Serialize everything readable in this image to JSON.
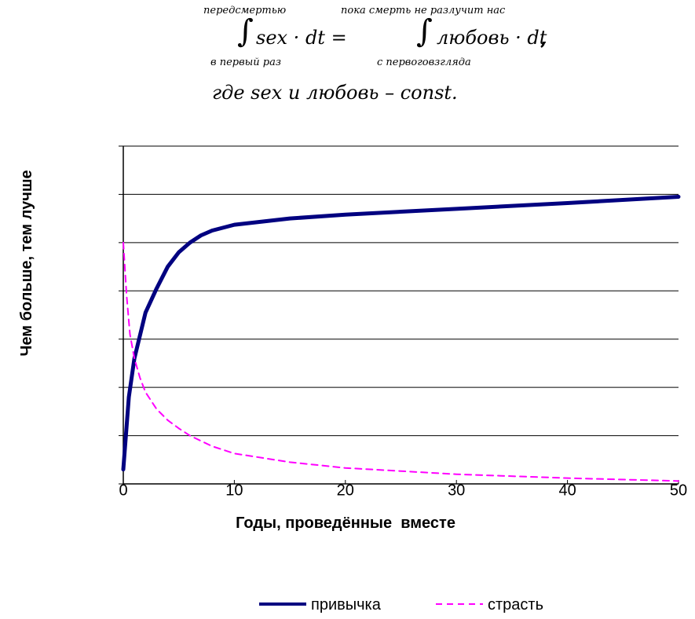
{
  "formula": {
    "int1_upper": "передсмертью",
    "int1_lower": "в первый раз",
    "int1_expr": "sex · dt =",
    "int2_upper": "пока смерть не разлучит нас",
    "int2_lower": "с первоговзгляда",
    "int2_expr": "любовь · dt",
    "comma": ",",
    "where": "где sex и любовь – const."
  },
  "colors": {
    "habit": "#000080",
    "passion": "#ff00ff",
    "grid": "#000000"
  },
  "chart_data": {
    "type": "line",
    "xlabel": "Годы, проведённые  вместе",
    "ylabel": "Чем больше, тем лучше",
    "xlim": [
      0,
      50
    ],
    "ylim": [
      0,
      7
    ],
    "x_ticks": [
      0,
      10,
      20,
      30,
      40,
      50
    ],
    "grid": true,
    "legend_position": "bottom",
    "series": [
      {
        "name": "привычка",
        "style": "solid",
        "x": [
          0,
          0.5,
          1,
          2,
          3,
          4,
          5,
          6,
          7,
          8,
          10,
          15,
          20,
          30,
          40,
          50
        ],
        "y": [
          0.3,
          1.8,
          2.6,
          3.55,
          4.05,
          4.5,
          4.8,
          5.0,
          5.15,
          5.25,
          5.37,
          5.5,
          5.58,
          5.7,
          5.82,
          5.95
        ]
      },
      {
        "name": "страсть",
        "style": "dashed",
        "x": [
          0,
          0.3,
          0.6,
          1,
          1.5,
          2,
          3,
          4,
          5,
          6,
          8,
          10,
          15,
          20,
          30,
          40,
          50
        ],
        "y": [
          5.0,
          3.9,
          3.1,
          2.6,
          2.2,
          1.9,
          1.55,
          1.32,
          1.15,
          1.0,
          0.78,
          0.63,
          0.45,
          0.33,
          0.2,
          0.12,
          0.06
        ]
      }
    ]
  }
}
